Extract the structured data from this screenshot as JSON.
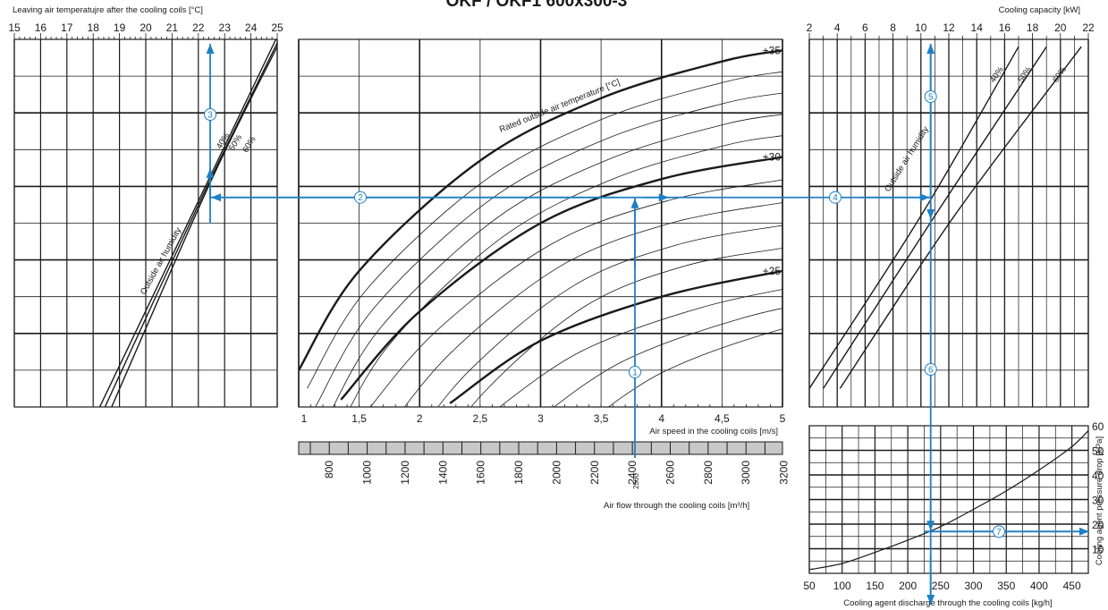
{
  "title": "OKF / OKF1 600x300-3",
  "chart_data": [
    {
      "id": "leaving-temperature",
      "type": "line",
      "xlabel": "Leaving air temperatujre after the cooling coils [°C]",
      "xlim": [
        15,
        25
      ],
      "x_ticks": [
        "15",
        "16",
        "17",
        "18",
        "19",
        "20",
        "21",
        "22",
        "23",
        "24",
        "25"
      ],
      "curve_label": "Outside air humidity",
      "series": [
        {
          "name": "40%",
          "x": [
            18.25,
            22.0,
            24.95
          ],
          "y": [
            0,
            0.56,
            1.0
          ]
        },
        {
          "name": "50%",
          "x": [
            18.45,
            22.2,
            25.0
          ],
          "y": [
            0,
            0.58,
            0.99
          ]
        },
        {
          "name": "60%",
          "x": [
            18.7,
            22.45,
            25.0
          ],
          "y": [
            0,
            0.61,
            0.98
          ]
        }
      ]
    },
    {
      "id": "air-speed",
      "type": "line",
      "xlabel": "Air speed in the cooling coils [m/s]",
      "xlim": [
        1,
        5
      ],
      "x_ticks": [
        "1",
        "1,5",
        "2",
        "2,5",
        "3",
        "3,5",
        "4",
        "4,5",
        "5"
      ],
      "secondary_xlabel": "Air flow through the cooling coils [m³/h]",
      "secondary_ticks": [
        "800",
        "1000",
        "1200",
        "1400",
        "1600",
        "1800",
        "2000",
        "2200",
        "2400",
        "2600",
        "2800",
        "3000",
        "3200"
      ],
      "marked_flow": "2500",
      "curve_label": "Rated outside air temperature [°C]",
      "series": [
        {
          "name": "+35",
          "x": [
            1.0,
            1.5,
            2.5,
            3.5,
            4.5,
            5.0
          ],
          "y": [
            0.1,
            0.37,
            0.67,
            0.84,
            0.94,
            0.97
          ]
        },
        {
          "name": "+30",
          "x": [
            1.35,
            2.0,
            3.0,
            4.0,
            5.0
          ],
          "y": [
            0.02,
            0.26,
            0.5,
            0.62,
            0.68
          ]
        },
        {
          "name": "+25",
          "x": [
            2.25,
            3.0,
            4.0,
            5.0
          ],
          "y": [
            0.01,
            0.18,
            0.3,
            0.37
          ]
        }
      ],
      "lines_per_degree": true
    },
    {
      "id": "cooling-capacity",
      "type": "line",
      "xlabel": "Cooling capacity [kW]",
      "xlim": [
        2,
        22
      ],
      "x_ticks": [
        "2",
        "4",
        "6",
        "8",
        "10",
        "12",
        "14",
        "16",
        "18",
        "20",
        "22"
      ],
      "curve_label": "Outside air humidity",
      "series": [
        {
          "name": "40%",
          "x": [
            2.0,
            10.0,
            17.0
          ],
          "y": [
            0.05,
            0.52,
            0.98
          ]
        },
        {
          "name": "50%",
          "x": [
            3.0,
            11.0,
            19.0
          ],
          "y": [
            0.05,
            0.52,
            0.98
          ]
        },
        {
          "name": "60%",
          "x": [
            4.2,
            12.4,
            21.5
          ],
          "y": [
            0.05,
            0.52,
            0.98
          ]
        }
      ]
    },
    {
      "id": "pressure-drop",
      "type": "line",
      "xlabel": "Cooling agent discharge through the cooling coils [kg/h]",
      "ylabel": "Cooling agent pressure drop [kPa]",
      "xlim": [
        50,
        475
      ],
      "ylim": [
        0,
        60
      ],
      "x_ticks": [
        "50",
        "100",
        "150",
        "200",
        "250",
        "300",
        "350",
        "400",
        "450"
      ],
      "y_ticks": [
        "10",
        "20",
        "30",
        "40",
        "50",
        "60"
      ],
      "series": [
        {
          "name": "pressure drop",
          "x": [
            50,
            100,
            150,
            200,
            250,
            300,
            350,
            400,
            450,
            475
          ],
          "y": [
            1.5,
            4,
            8.5,
            13.5,
            19,
            26,
            33.5,
            42,
            51.5,
            58
          ]
        }
      ]
    }
  ],
  "markers": [
    "1",
    "2",
    "3",
    "4",
    "5",
    "6",
    "7"
  ]
}
